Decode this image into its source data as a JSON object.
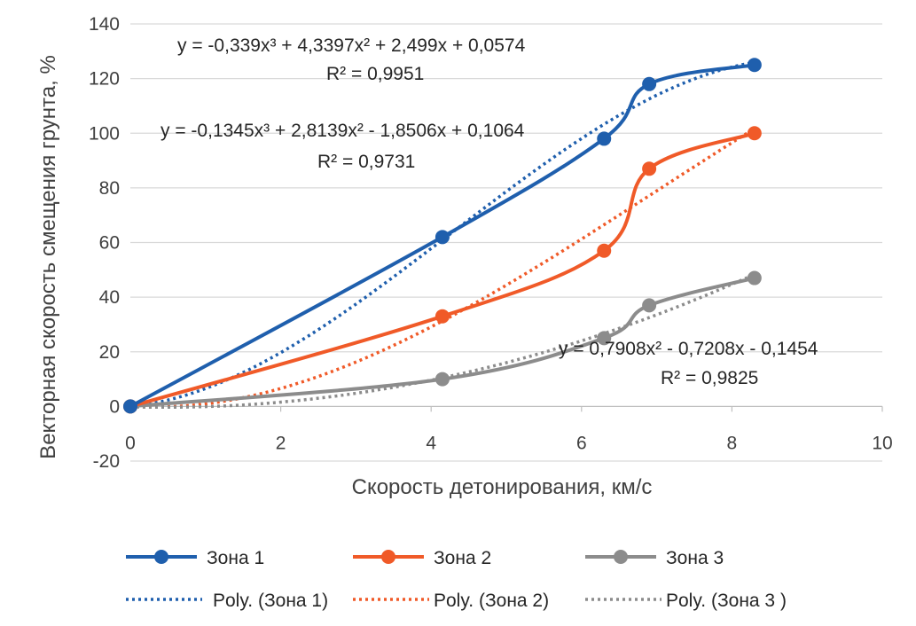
{
  "chart_data": {
    "type": "line",
    "title": "",
    "xlabel": "Скорость детонирования, км/с",
    "ylabel": "Векторная скорость смещения грунта, %",
    "xlim": [
      0,
      10
    ],
    "ylim": [
      -20,
      140
    ],
    "x_ticks": [
      "0",
      "2",
      "4",
      "6",
      "8",
      "10"
    ],
    "y_ticks": [
      "-20",
      "0",
      "20",
      "40",
      "60",
      "80",
      "100",
      "120",
      "140"
    ],
    "grid": "horizontal",
    "legend_position": "bottom",
    "series": [
      {
        "name": "Зона 1",
        "color": "#1F5FAD",
        "x": [
          0,
          4.15,
          6.3,
          6.9,
          8.3
        ],
        "y": [
          0,
          62,
          98,
          118,
          125
        ]
      },
      {
        "name": "Зона 2",
        "color": "#F05A28",
        "x": [
          0,
          4.15,
          6.3,
          6.9,
          8.3
        ],
        "y": [
          0,
          33,
          57,
          87,
          100
        ]
      },
      {
        "name": "Зона 3",
        "color": "#8C8C8C",
        "x": [
          0,
          4.15,
          6.3,
          6.9,
          8.3
        ],
        "y": [
          0,
          10,
          25,
          37,
          47
        ]
      }
    ],
    "trendlines": [
      {
        "name": "Poly. (Зона 1)",
        "color": "#1F5FAD",
        "order": 3,
        "coefficients": [
          -0.339,
          4.3397,
          2.499,
          0.0574
        ],
        "equation": "y = -0,339x³ + 4,3397x² + 2,499x + 0,0574",
        "r2": "R² = 0,9951"
      },
      {
        "name": "Poly. (Зона 2)",
        "color": "#F05A28",
        "order": 3,
        "coefficients": [
          -0.1345,
          2.8139,
          -1.8506,
          0.1064
        ],
        "equation": "y = -0,1345x³ + 2,8139x² - 1,8506x + 0,1064",
        "r2": "R² = 0,9731"
      },
      {
        "name": "Poly. (Зона 3 )",
        "color": "#8C8C8C",
        "order": 2,
        "coefficients": [
          0.7908,
          -0.7208,
          -0.1454
        ],
        "equation": "y = 0,7908x² - 0,7208x - 0,1454",
        "r2": "R² = 0,9825"
      }
    ]
  }
}
